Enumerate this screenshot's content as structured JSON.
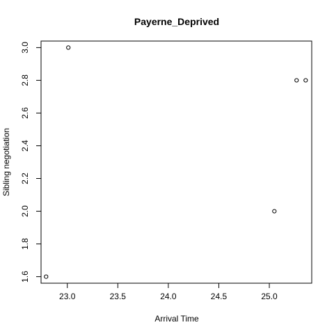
{
  "chart_data": {
    "type": "scatter",
    "title": "Payerne_Deprived",
    "xlabel": "Arrival Time",
    "ylabel": "Sibling negotiation",
    "xlim": [
      22.74,
      25.42
    ],
    "ylim": [
      1.56,
      3.04
    ],
    "x_ticks": [
      23.0,
      23.5,
      24.0,
      24.5,
      25.0
    ],
    "x_tick_labels": [
      "23.0",
      "23.5",
      "24.0",
      "24.5",
      "25.0"
    ],
    "y_ticks": [
      1.6,
      1.8,
      2.0,
      2.2,
      2.4,
      2.6,
      2.8,
      3.0
    ],
    "y_tick_labels": [
      "1.6",
      "1.8",
      "2.0",
      "2.2",
      "2.4",
      "2.6",
      "2.8",
      "3.0"
    ],
    "grid": false,
    "points": [
      {
        "x": 22.79,
        "y": 1.6
      },
      {
        "x": 23.01,
        "y": 3.0
      },
      {
        "x": 25.05,
        "y": 2.0
      },
      {
        "x": 25.27,
        "y": 2.8
      },
      {
        "x": 25.36,
        "y": 2.8
      }
    ]
  }
}
